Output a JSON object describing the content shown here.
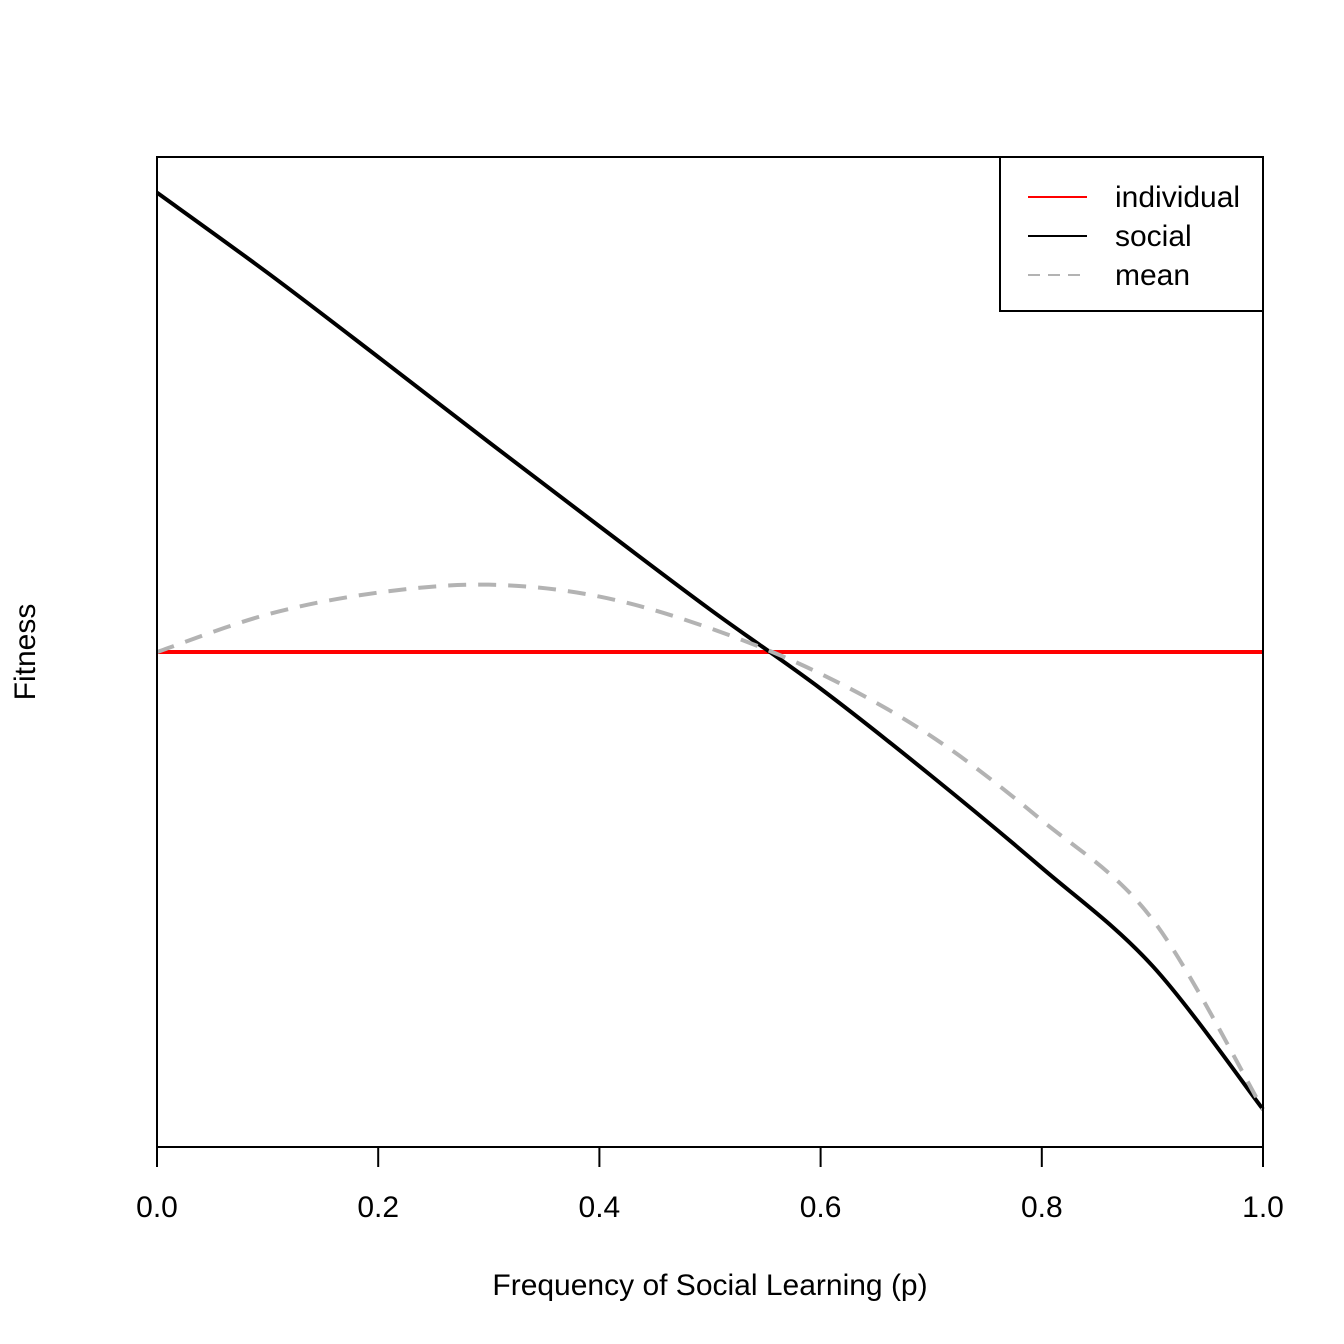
{
  "chart_data": {
    "type": "line",
    "title": "",
    "xlabel": "Frequency of Social Learning (p)",
    "ylabel": "Fitness",
    "xlim": [
      0.0,
      1.0
    ],
    "ylim": [
      -0.5,
      0.5
    ],
    "y_ticks_shown": false,
    "x_ticks": [
      0.0,
      0.2,
      0.4,
      0.6,
      0.8,
      1.0
    ],
    "x_tick_labels": [
      "0.0",
      "0.2",
      "0.4",
      "0.6",
      "0.8",
      "1.0"
    ],
    "grid": false,
    "legend_position": "top-right",
    "series": [
      {
        "name": "individual",
        "color": "#ff0000",
        "dash": "solid",
        "x": [
          0.0,
          0.1,
          0.2,
          0.3,
          0.4,
          0.5,
          0.6,
          0.7,
          0.8,
          0.9,
          1.0
        ],
        "y": [
          0.0,
          0.0,
          0.0,
          0.0,
          0.0,
          0.0,
          0.0,
          0.0,
          0.0,
          0.0,
          0.0
        ]
      },
      {
        "name": "social",
        "color": "#000000",
        "dash": "solid",
        "x": [
          0.0,
          0.1,
          0.2,
          0.3,
          0.4,
          0.5,
          0.6,
          0.7,
          0.8,
          0.9,
          1.0
        ],
        "y": [
          0.464,
          0.383,
          0.298,
          0.212,
          0.127,
          0.043,
          -0.037,
          -0.125,
          -0.218,
          -0.317,
          -0.462
        ]
      },
      {
        "name": "mean",
        "color": "#b3b3b3",
        "dash": "dashed",
        "x": [
          0.0,
          0.1,
          0.2,
          0.3,
          0.4,
          0.5,
          0.6,
          0.7,
          0.8,
          0.9,
          1.0
        ],
        "y": [
          0.0,
          0.038,
          0.06,
          0.068,
          0.056,
          0.024,
          -0.022,
          -0.085,
          -0.17,
          -0.27,
          -0.462
        ]
      }
    ]
  }
}
